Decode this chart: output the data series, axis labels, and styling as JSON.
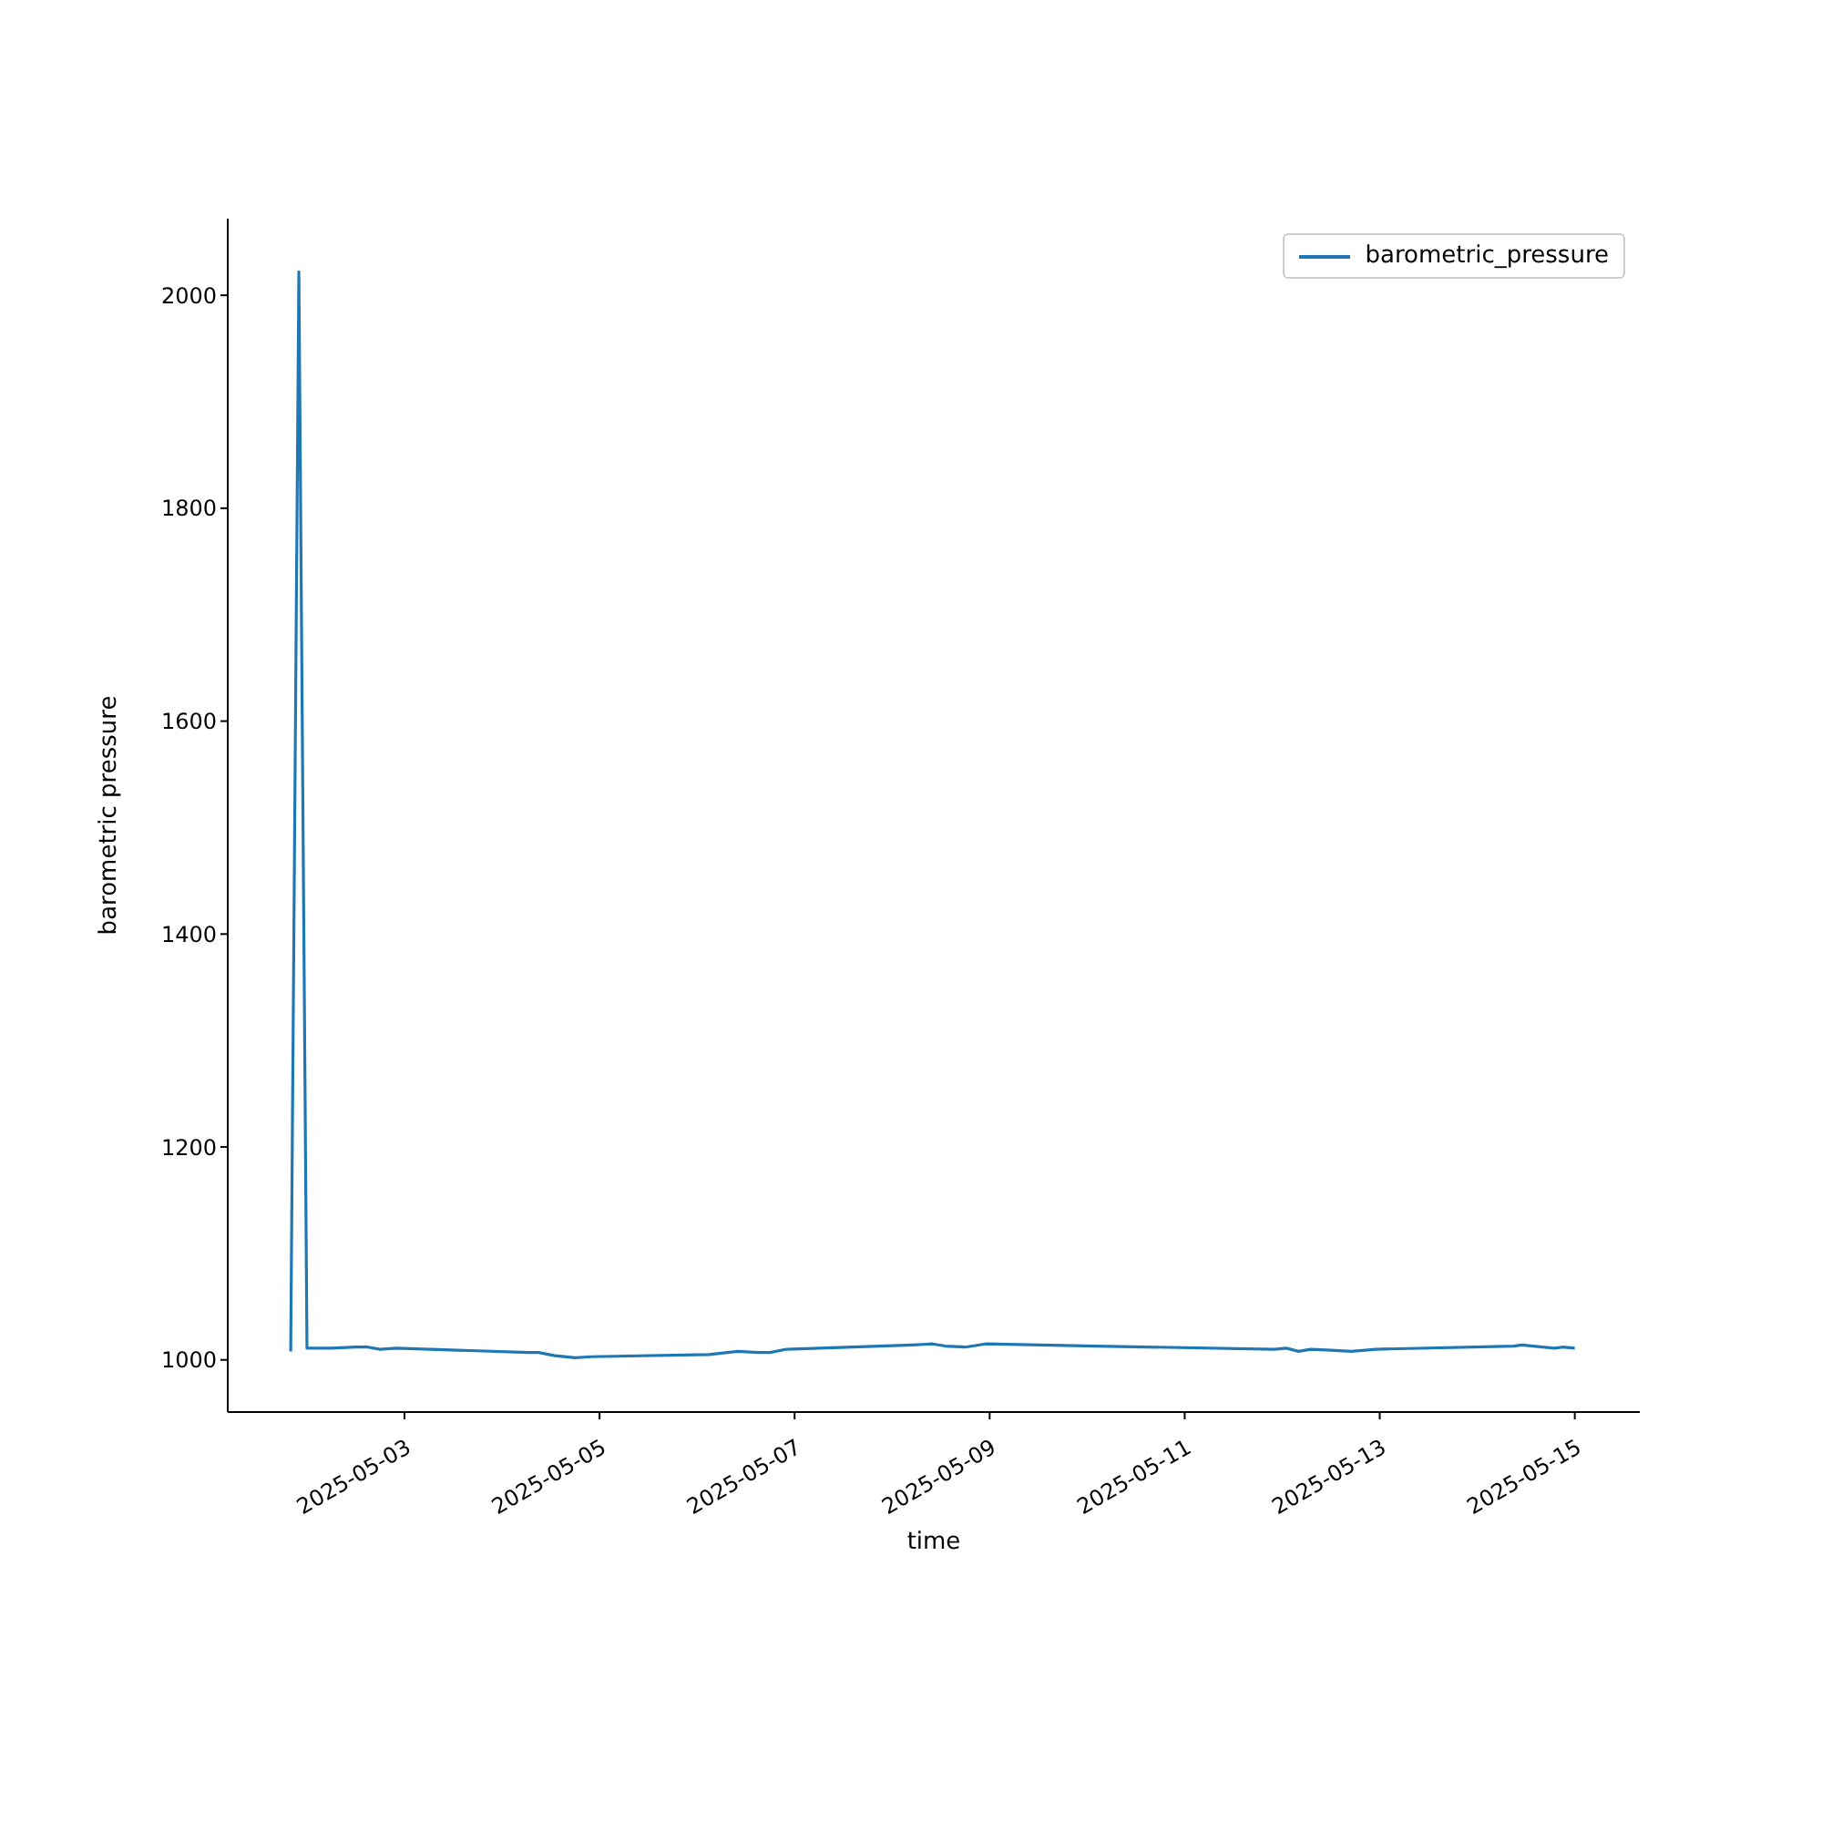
{
  "chart_data": {
    "type": "line",
    "xlabel": "time",
    "ylabel": "barometric pressure",
    "legend": "top right",
    "line_style": "solid",
    "x": [
      "2025-05-01T20:00",
      "2025-05-01T22:00",
      "2025-05-02T00:00",
      "2025-05-02T06:00",
      "2025-05-02T12:00",
      "2025-05-02T15:00",
      "2025-05-02T18:00",
      "2025-05-02T22:00",
      "2025-05-04T06:30",
      "2025-05-04T09:00",
      "2025-05-04T13:00",
      "2025-05-04T18:00",
      "2025-05-04T22:00",
      "2025-05-06T03:00",
      "2025-05-06T10:00",
      "2025-05-06T15:00",
      "2025-05-06T18:00",
      "2025-05-06T22:00",
      "2025-05-08T05:00",
      "2025-05-08T10:00",
      "2025-05-08T13:00",
      "2025-05-08T18:00",
      "2025-05-08T23:00",
      "2025-05-10T02:00",
      "2025-05-11T22:00",
      "2025-05-12T01:00",
      "2025-05-12T04:00",
      "2025-05-12T07:00",
      "2025-05-12T12:00",
      "2025-05-12T17:00",
      "2025-05-12T23:00",
      "2025-05-14T09:00",
      "2025-05-14T11:00",
      "2025-05-14T16:00",
      "2025-05-14T19:00",
      "2025-05-14T21:00",
      "2025-05-15T00:00"
    ],
    "series": [
      {
        "name": "barometric_pressure",
        "color": "#1f77b4",
        "values": [
          1008,
          2022,
          1011,
          1011,
          1012,
          1012,
          1010,
          1011,
          1007,
          1007,
          1004,
          1002,
          1003,
          1005,
          1008,
          1007,
          1007,
          1010,
          1014,
          1015,
          1013,
          1012,
          1015,
          1013,
          1010,
          1011,
          1008,
          1010,
          1009,
          1008,
          1010,
          1013,
          1014,
          1012,
          1011,
          1012,
          1011
        ]
      }
    ],
    "xlim": [
      "2025-05-01T04:30",
      "2025-05-15T16:00"
    ],
    "xticks": [
      "2025-05-03",
      "2025-05-05",
      "2025-05-07",
      "2025-05-09",
      "2025-05-11",
      "2025-05-13",
      "2025-05-15"
    ],
    "ylim": [
      951,
      2072
    ],
    "yticks": [
      1000,
      1200,
      1400,
      1600,
      1800,
      2000
    ]
  }
}
